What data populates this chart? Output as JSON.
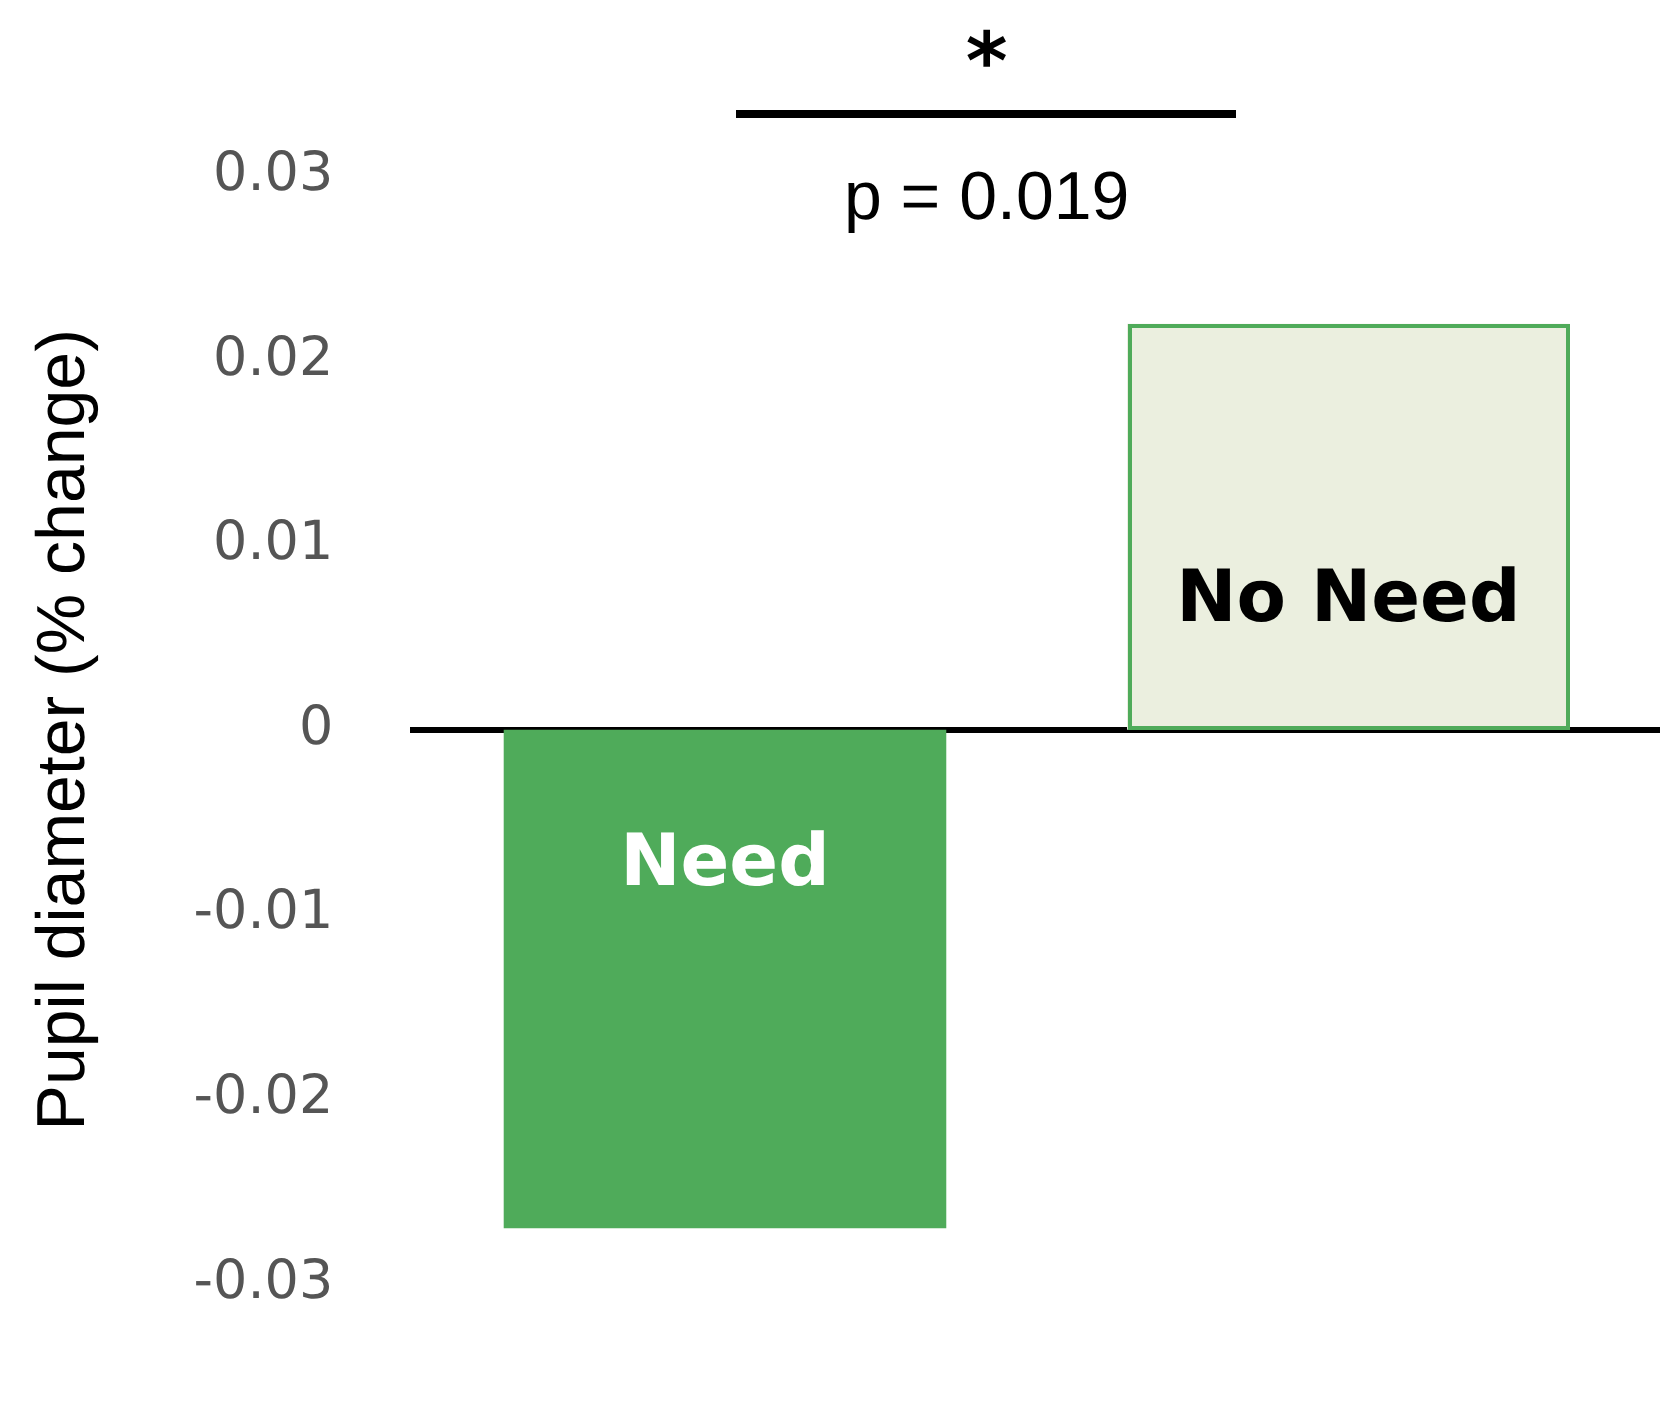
{
  "chart_data": {
    "type": "bar",
    "ylabel": "Pupil diameter (% change)",
    "categories": [
      "Need",
      "No Need"
    ],
    "values": [
      -0.027,
      0.022
    ],
    "colors": [
      "#4fab5a",
      "#ebefdf"
    ],
    "ylim": [
      -0.03,
      0.03
    ],
    "yticks": [
      -0.03,
      -0.02,
      -0.01,
      0,
      0.01,
      0.02,
      0.03
    ],
    "legend": false,
    "tick_labels": "y",
    "annotations": [
      "*",
      "p = 0.019"
    ]
  }
}
